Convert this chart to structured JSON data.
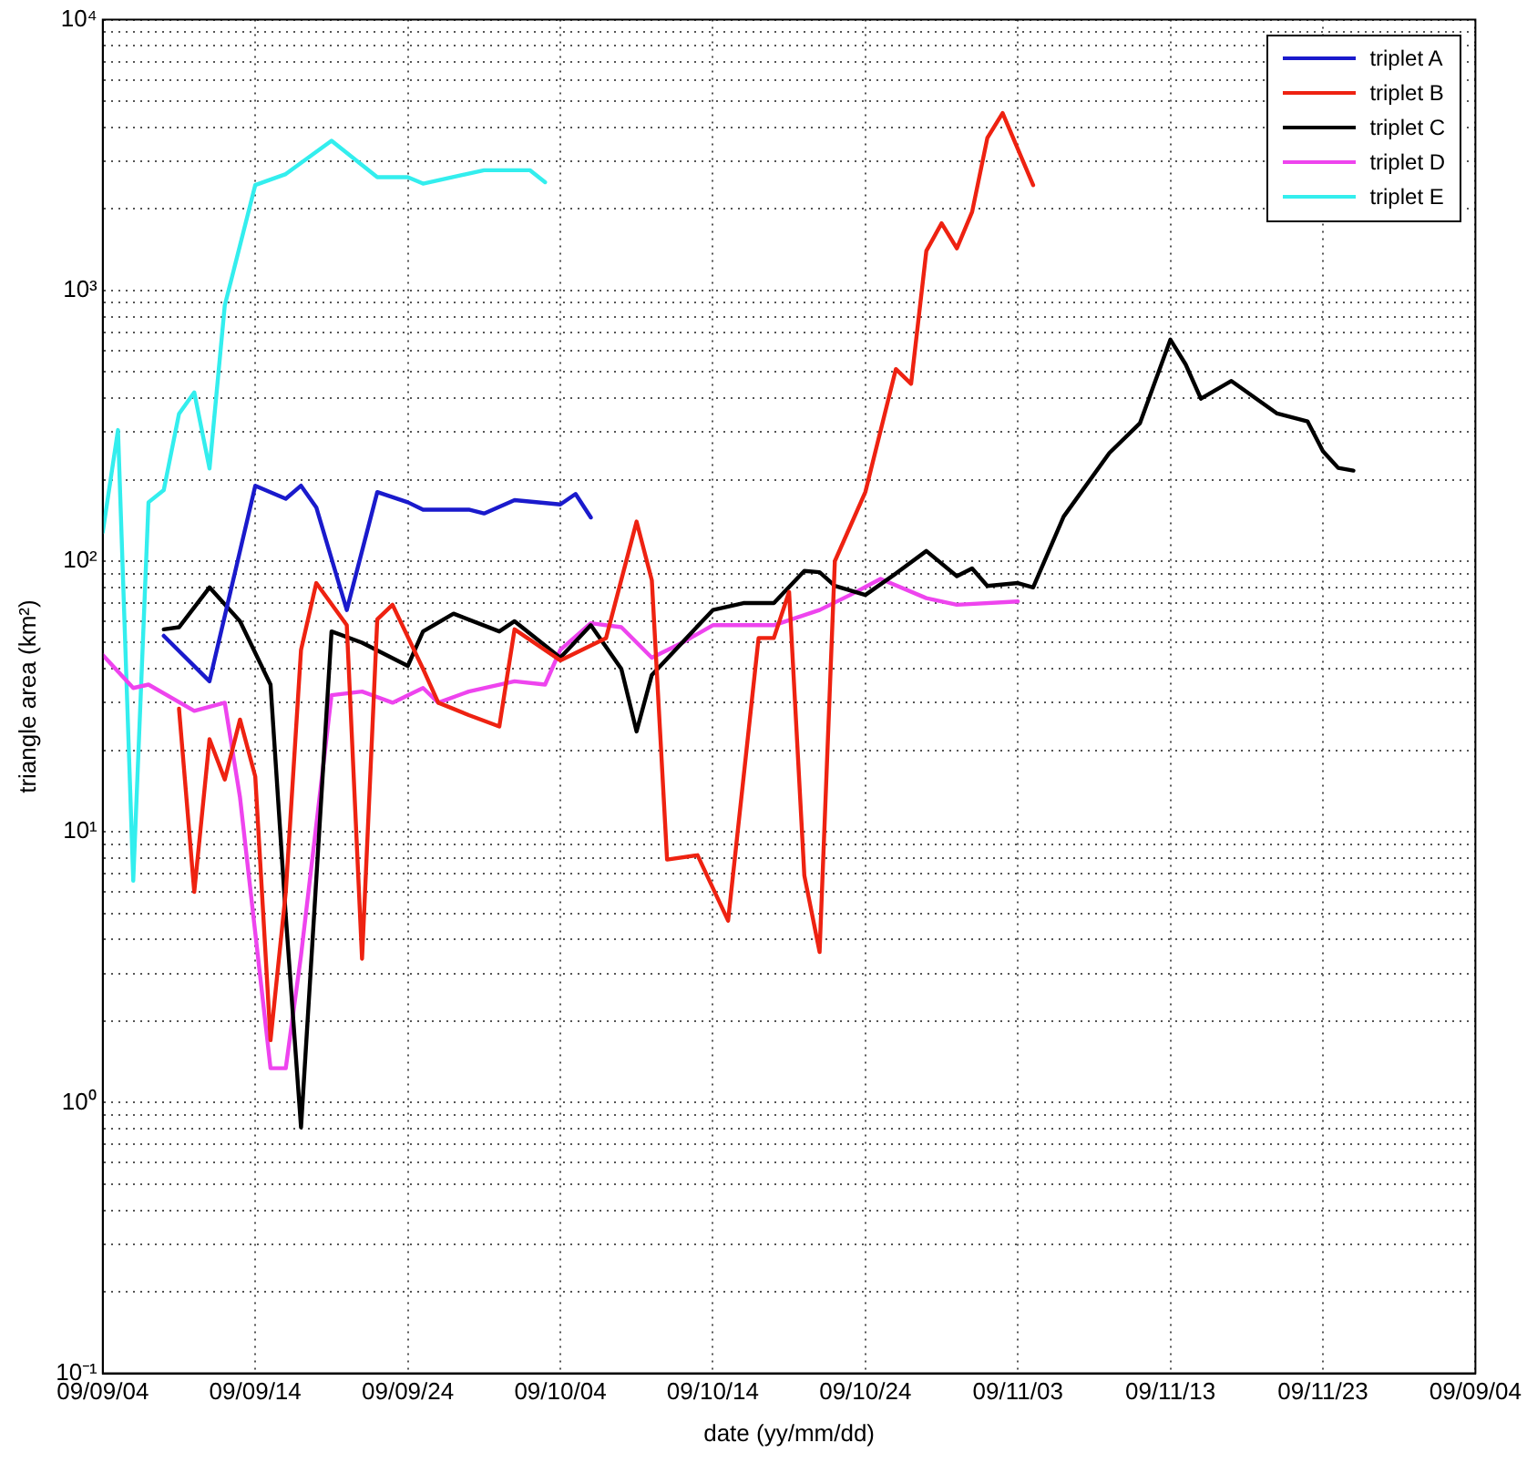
{
  "chart_data": {
    "type": "line",
    "xlabel": "date (yy/mm/dd)",
    "ylabel": "triangle area (km²)",
    "log": "y",
    "grid": true,
    "legend": "top right",
    "marker": "none",
    "line_style": "solid",
    "xlim": [
      "--09-04",
      "--12-03"
    ],
    "xticks": [
      {
        "value": "--09-04",
        "label": "09/09/04"
      },
      {
        "value": "--09-14",
        "label": "09/09/14"
      },
      {
        "value": "--09-24",
        "label": "09/09/24"
      },
      {
        "value": "--10-04",
        "label": "09/10/04"
      },
      {
        "value": "--10-14",
        "label": "09/10/14"
      },
      {
        "value": "--10-24",
        "label": "09/10/24"
      },
      {
        "value": "--11-03",
        "label": "09/11/03"
      },
      {
        "value": "--11-13",
        "label": "09/11/13"
      },
      {
        "value": "--11-23",
        "label": "09/11/23"
      },
      {
        "value": "--12-03",
        "label": "09/09/04"
      }
    ],
    "ylim": [
      0.1,
      10000
    ],
    "yticks": [
      {
        "value": 0.1,
        "label": "10⁻¹"
      },
      {
        "value": 0.2,
        "label": null
      },
      {
        "value": 0.3,
        "label": null
      },
      {
        "value": 0.4,
        "label": null
      },
      {
        "value": 0.5,
        "label": null
      },
      {
        "value": 0.6,
        "label": null
      },
      {
        "value": 0.7,
        "label": null
      },
      {
        "value": 0.8,
        "label": null
      },
      {
        "value": 0.9,
        "label": null
      },
      {
        "value": 1,
        "label": "10⁰"
      },
      {
        "value": 2,
        "label": null
      },
      {
        "value": 3,
        "label": null
      },
      {
        "value": 4,
        "label": null
      },
      {
        "value": 5,
        "label": null
      },
      {
        "value": 6,
        "label": null
      },
      {
        "value": 7,
        "label": null
      },
      {
        "value": 8,
        "label": null
      },
      {
        "value": 9,
        "label": null
      },
      {
        "value": 10,
        "label": "10¹"
      },
      {
        "value": 20,
        "label": null
      },
      {
        "value": 30,
        "label": null
      },
      {
        "value": 40,
        "label": null
      },
      {
        "value": 50,
        "label": null
      },
      {
        "value": 60,
        "label": null
      },
      {
        "value": 70,
        "label": null
      },
      {
        "value": 80,
        "label": null
      },
      {
        "value": 90,
        "label": null
      },
      {
        "value": 100,
        "label": "10²"
      },
      {
        "value": 200,
        "label": null
      },
      {
        "value": 300,
        "label": null
      },
      {
        "value": 400,
        "label": null
      },
      {
        "value": 500,
        "label": null
      },
      {
        "value": 600,
        "label": null
      },
      {
        "value": 700,
        "label": null
      },
      {
        "value": 800,
        "label": null
      },
      {
        "value": 900,
        "label": null
      },
      {
        "value": 1000,
        "label": "10³"
      },
      {
        "value": 2000,
        "label": null
      },
      {
        "value": 3000,
        "label": null
      },
      {
        "value": 4000,
        "label": null
      },
      {
        "value": 5000,
        "label": null
      },
      {
        "value": 6000,
        "label": null
      },
      {
        "value": 7000,
        "label": null
      },
      {
        "value": 8000,
        "label": null
      },
      {
        "value": 9000,
        "label": null
      },
      {
        "value": 10000,
        "label": "10⁴"
      }
    ],
    "series": [
      {
        "name": "triplet A",
        "color": "#1a1acc",
        "x": [
          "--09-08",
          "--09-11",
          "--09-14",
          "--09-16",
          "--09-17",
          "--09-18",
          "--09-20",
          "--09-22",
          "--09-24",
          "--09-25",
          "--09-28",
          "--09-29",
          "--10-01",
          "--10-04",
          "--10-05",
          "--10-06"
        ],
        "values": [
          53,
          36,
          190,
          170,
          190,
          158,
          66,
          180,
          165,
          155,
          155,
          150,
          168,
          162,
          177,
          145
        ]
      },
      {
        "name": "triplet B",
        "color": "#ee2211",
        "x": [
          "--09-09",
          "--09-10",
          "--09-11",
          "--09-12",
          "--09-13",
          "--09-14",
          "--09-15",
          "--09-16",
          "--09-17",
          "--09-18",
          "--09-20",
          "--09-21",
          "--09-22",
          "--09-23",
          "--09-25",
          "--09-26",
          "--09-28",
          "--09-30",
          "--10-01",
          "--10-04",
          "--10-07",
          "--10-09",
          "--10-10",
          "--10-11",
          "--10-13",
          "--10-15",
          "--10-17",
          "--10-18",
          "--10-19",
          "--10-20",
          "--10-21",
          "--10-22",
          "--10-24",
          "--10-26",
          "--10-27",
          "--10-28",
          "--10-29",
          "--10-30",
          "--10-31",
          "--11-01",
          "--11-02",
          "--11-04"
        ],
        "values": [
          28.5,
          6,
          22,
          15.6,
          26,
          16,
          1.7,
          6,
          47,
          83,
          58,
          3.4,
          61,
          69,
          40,
          30,
          27,
          24.5,
          56,
          43,
          52,
          140,
          85,
          7.9,
          8.2,
          4.7,
          52,
          52,
          77,
          6.9,
          3.6,
          100,
          180,
          512,
          452,
          1400,
          1770,
          1430,
          1950,
          3660,
          4520,
          2450
        ]
      },
      {
        "name": "triplet C",
        "color": "#000000",
        "x": [
          "--09-08",
          "--09-09",
          "--09-11",
          "--09-13",
          "--09-15",
          "--09-16",
          "--09-17",
          "--09-19",
          "--09-21",
          "--09-24",
          "--09-25",
          "--09-27",
          "--09-30",
          "--10-01",
          "--10-04",
          "--10-06",
          "--10-08",
          "--10-09",
          "--10-10",
          "--10-14",
          "--10-16",
          "--10-18",
          "--10-20",
          "--10-21",
          "--10-22",
          "--10-24",
          "--10-26",
          "--10-28",
          "--10-30",
          "--10-31",
          "--11-01",
          "--11-03",
          "--11-04",
          "--11-06",
          "--11-09",
          "--11-11",
          "--11-13",
          "--11-14",
          "--11-15",
          "--11-17",
          "--11-20",
          "--11-22",
          "--11-23",
          "--11-24",
          "--11-25"
        ],
        "values": [
          56,
          57,
          80,
          60,
          35,
          4.9,
          0.81,
          55,
          50,
          41,
          55,
          64,
          55,
          60,
          44,
          58,
          40,
          23.5,
          38,
          66,
          70,
          70,
          92,
          91,
          81,
          75,
          90,
          109,
          88,
          94,
          81,
          83,
          80,
          146,
          251,
          323,
          658,
          533,
          398,
          463,
          351,
          328,
          255,
          221,
          216
        ]
      },
      {
        "name": "triplet D",
        "color": "#ee44ee",
        "x": [
          "--09-04",
          "--09-06",
          "--09-07",
          "--09-10",
          "--09-12",
          "--09-13",
          "--09-15",
          "--09-16",
          "--09-17",
          "--09-19",
          "--09-21",
          "--09-23",
          "--09-25",
          "--09-26",
          "--09-28",
          "--10-01",
          "--10-03",
          "--10-04",
          "--10-06",
          "--10-08",
          "--10-10",
          "--10-12",
          "--10-14",
          "--10-18",
          "--10-21",
          "--10-23",
          "--10-25",
          "--10-28",
          "--10-30",
          "--11-03"
        ],
        "values": [
          45,
          34,
          35,
          28,
          30,
          13.4,
          1.34,
          1.34,
          3.5,
          32,
          33,
          30,
          34,
          30,
          33,
          36,
          35,
          47,
          59,
          57,
          44,
          50,
          58,
          58,
          66,
          75,
          86,
          73,
          69,
          71
        ]
      },
      {
        "name": "triplet E",
        "color": "#33eeee",
        "x": [
          "--09-04",
          "--09-05",
          "--09-06",
          "--09-07",
          "--09-08",
          "--09-09",
          "--09-10",
          "--09-11",
          "--09-12",
          "--09-14",
          "--09-16",
          "--09-19",
          "--09-22",
          "--09-24",
          "--09-25",
          "--09-29",
          "--10-02",
          "--10-03"
        ],
        "values": [
          128,
          305,
          6.6,
          165,
          183,
          350,
          420,
          220,
          880,
          2450,
          2690,
          3570,
          2620,
          2620,
          2480,
          2780,
          2780,
          2510
        ]
      }
    ]
  }
}
